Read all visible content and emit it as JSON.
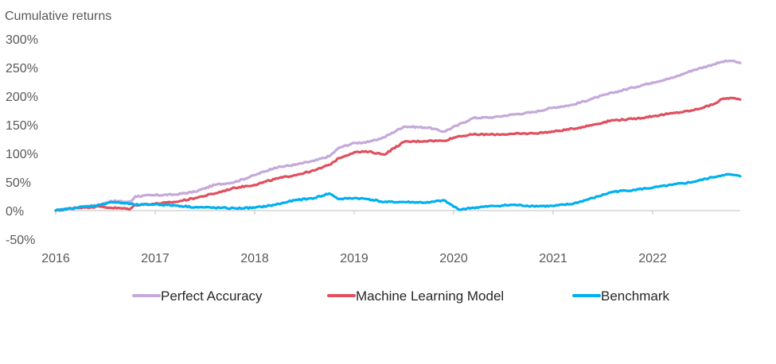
{
  "chart_data": {
    "type": "line",
    "title": "Cumulative returns",
    "xlabel": "",
    "ylabel": "Cumulative returns",
    "x_ticks": [
      "2016",
      "2017",
      "2018",
      "2019",
      "2020",
      "2021",
      "2022"
    ],
    "y_ticks": [
      "300%",
      "250%",
      "200%",
      "150%",
      "100%",
      "50%",
      "0%",
      "-50%"
    ],
    "y_tick_values": [
      300,
      250,
      200,
      150,
      100,
      50,
      0,
      -50
    ],
    "xlim": [
      2016.0,
      2022.88
    ],
    "ylim": [
      -50,
      300
    ],
    "grid": false,
    "legend_position": "bottom",
    "series": [
      {
        "name": "Perfect Accuracy",
        "color": "#c5a9da",
        "x": [
          2016.0,
          2016.2,
          2016.45,
          2016.55,
          2016.75,
          2016.8,
          2017.0,
          2017.2,
          2017.4,
          2017.6,
          2017.8,
          2018.0,
          2018.2,
          2018.4,
          2018.6,
          2018.75,
          2018.85,
          2019.0,
          2019.15,
          2019.3,
          2019.5,
          2019.75,
          2019.9,
          2020.05,
          2020.2,
          2020.4,
          2020.6,
          2020.8,
          2021.0,
          2021.2,
          2021.4,
          2021.6,
          2021.8,
          2022.0,
          2022.2,
          2022.4,
          2022.6,
          2022.7,
          2022.78,
          2022.88
        ],
        "values": [
          0,
          5,
          10,
          17,
          15,
          25,
          27,
          28,
          33,
          45,
          50,
          62,
          75,
          80,
          87,
          95,
          110,
          118,
          120,
          128,
          147,
          145,
          138,
          150,
          162,
          163,
          168,
          172,
          180,
          185,
          196,
          206,
          215,
          224,
          232,
          245,
          255,
          260,
          262,
          258
        ]
      },
      {
        "name": "Machine Learning Model",
        "color": "#e0505f",
        "x": [
          2016.0,
          2016.2,
          2016.45,
          2016.55,
          2016.75,
          2016.8,
          2017.0,
          2017.2,
          2017.4,
          2017.6,
          2017.8,
          2018.0,
          2018.2,
          2018.4,
          2018.6,
          2018.75,
          2018.85,
          2019.0,
          2019.15,
          2019.3,
          2019.5,
          2019.75,
          2019.9,
          2020.05,
          2020.2,
          2020.4,
          2020.6,
          2020.8,
          2021.0,
          2021.2,
          2021.4,
          2021.6,
          2021.8,
          2022.0,
          2022.2,
          2022.4,
          2022.6,
          2022.7,
          2022.78,
          2022.88
        ],
        "values": [
          0,
          5,
          7,
          5,
          3,
          10,
          12,
          15,
          22,
          30,
          40,
          45,
          55,
          62,
          70,
          80,
          92,
          102,
          103,
          98,
          120,
          122,
          122,
          130,
          133,
          133,
          134,
          135,
          138,
          143,
          150,
          158,
          160,
          165,
          170,
          175,
          185,
          195,
          197,
          194
        ]
      },
      {
        "name": "Benchmark",
        "color": "#00b0f0",
        "x": [
          2016.0,
          2016.2,
          2016.45,
          2016.55,
          2016.75,
          2016.8,
          2017.0,
          2017.2,
          2017.4,
          2017.6,
          2017.8,
          2018.0,
          2018.2,
          2018.4,
          2018.6,
          2018.75,
          2018.85,
          2019.0,
          2019.15,
          2019.3,
          2019.5,
          2019.75,
          2019.9,
          2020.05,
          2020.2,
          2020.4,
          2020.6,
          2020.8,
          2021.0,
          2021.2,
          2021.4,
          2021.6,
          2021.8,
          2022.0,
          2022.2,
          2022.4,
          2022.6,
          2022.7,
          2022.78,
          2022.88
        ],
        "values": [
          0,
          5,
          10,
          15,
          12,
          10,
          11,
          9,
          6,
          5,
          4,
          5,
          10,
          18,
          22,
          30,
          20,
          22,
          20,
          15,
          15,
          14,
          18,
          2,
          5,
          8,
          10,
          8,
          8,
          12,
          22,
          33,
          36,
          40,
          45,
          50,
          58,
          62,
          63,
          60
        ]
      }
    ]
  }
}
